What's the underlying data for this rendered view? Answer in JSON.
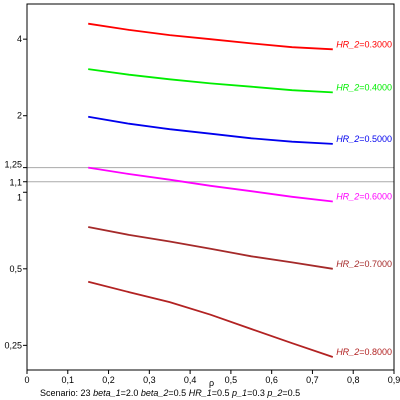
{
  "chart_data": {
    "type": "line",
    "xlabel": "ρ",
    "ylabel": "",
    "xlim": [
      0,
      0.9
    ],
    "ylim": [
      0.2,
      5.5
    ],
    "y_scale": "log",
    "grid": false,
    "x_ticks": [
      "0",
      "0,1",
      "0,2",
      "0,3",
      "0,4",
      "0,5",
      "0,6",
      "0,7",
      "0,8",
      "0,9"
    ],
    "x_tick_values": [
      0,
      0.1,
      0.2,
      0.3,
      0.4,
      0.5,
      0.6,
      0.7,
      0.8,
      0.9
    ],
    "y_ticks": [
      "4",
      "2",
      "1,25",
      "1,1",
      "1",
      "0,5",
      "0,25"
    ],
    "y_tick_values": [
      4,
      2,
      1.25,
      1.1,
      1,
      0.5,
      0.25
    ],
    "reference_lines": [
      1.25,
      1.1
    ],
    "x": [
      0.15,
      0.25,
      0.35,
      0.45,
      0.55,
      0.65,
      0.75
    ],
    "series": [
      {
        "name": "HR_2=0.3000",
        "label_prefix": "HR_2",
        "label_value": "0.3000",
        "color": "#ff0000",
        "values": [
          4.6,
          4.35,
          4.15,
          4.0,
          3.85,
          3.72,
          3.65
        ]
      },
      {
        "name": "HR_2=0.4000",
        "label_prefix": "HR_2",
        "label_value": "0.4000",
        "color": "#00ee00",
        "values": [
          3.05,
          2.9,
          2.78,
          2.68,
          2.6,
          2.52,
          2.47
        ]
      },
      {
        "name": "HR_2=0.5000",
        "label_prefix": "HR_2",
        "label_value": "0.5000",
        "color": "#0000ee",
        "values": [
          1.98,
          1.86,
          1.77,
          1.7,
          1.63,
          1.58,
          1.55
        ]
      },
      {
        "name": "HR_2=0.6000",
        "label_prefix": "HR_2",
        "label_value": "0.6000",
        "color": "#ff00ff",
        "values": [
          1.25,
          1.18,
          1.12,
          1.06,
          1.01,
          0.96,
          0.92
        ]
      },
      {
        "name": "HR_2=0.7000",
        "label_prefix": "HR_2",
        "label_value": "0.7000",
        "color": "#a52a2a",
        "values": [
          0.73,
          0.68,
          0.64,
          0.6,
          0.56,
          0.53,
          0.5
        ]
      },
      {
        "name": "HR_2=0.8000",
        "label_prefix": "HR_2",
        "label_value": "0.8000",
        "color": "#b22222",
        "values": [
          0.445,
          0.405,
          0.37,
          0.33,
          0.29,
          0.255,
          0.225
        ]
      }
    ]
  },
  "footer": {
    "scenario_label": "Scenario:",
    "scenario_value": "23",
    "params": [
      {
        "name": "beta_1",
        "value": "2.0"
      },
      {
        "name": "beta_2",
        "value": "0.5"
      },
      {
        "name": "HR_1",
        "value": "0.5"
      },
      {
        "name": "p_1",
        "value": "0.3"
      },
      {
        "name": "p_2",
        "value": "0.5"
      }
    ]
  }
}
